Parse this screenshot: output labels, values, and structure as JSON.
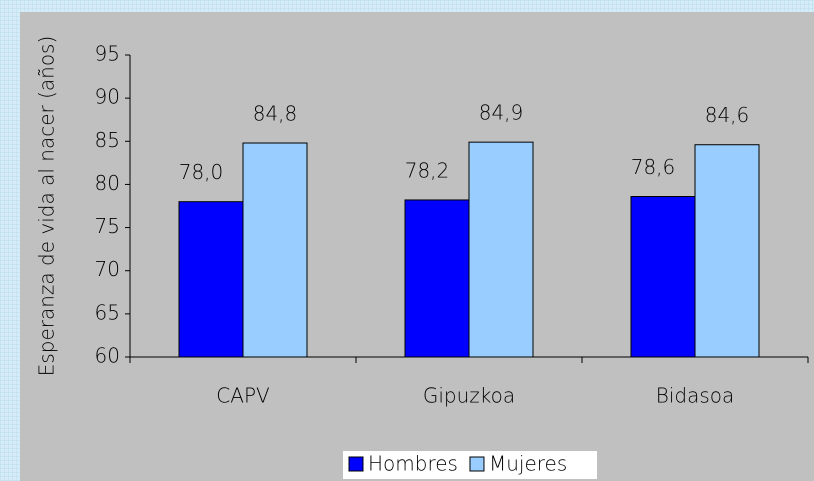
{
  "chart_data": {
    "type": "bar",
    "y_label": "Esperanza de vida al nacer (años)",
    "categories": [
      "CAPV",
      "Gipuzkoa",
      "Bidasoa"
    ],
    "series": [
      {
        "name": "Hombres",
        "color": "#0000ff",
        "values": [
          78.0,
          78.2,
          78.6
        ],
        "value_labels": [
          "78,0",
          "78,2",
          "78,6"
        ]
      },
      {
        "name": "Mujeres",
        "color": "#99ccff",
        "values": [
          84.8,
          84.9,
          84.6
        ],
        "value_labels": [
          "84,8",
          "84,9",
          "84,6"
        ]
      }
    ],
    "ylim": [
      60,
      95
    ],
    "yticks": [
      60,
      65,
      70,
      75,
      80,
      85,
      90,
      95
    ],
    "grid": false,
    "legend": "bottom"
  }
}
